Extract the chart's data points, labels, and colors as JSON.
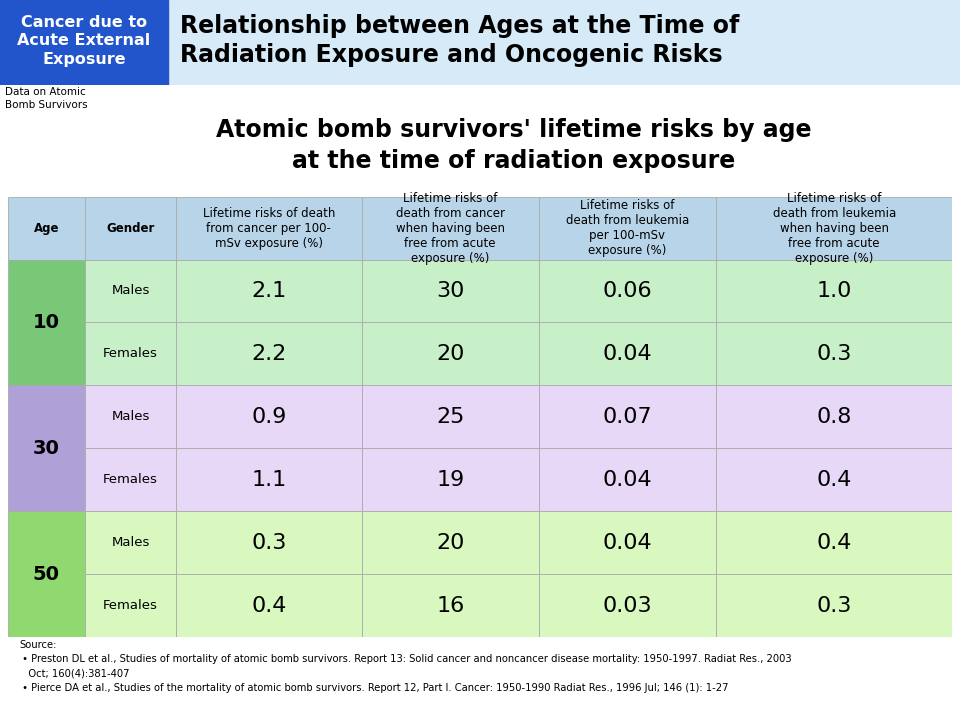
{
  "main_title": "Relationship between Ages at the Time of\nRadiation Exposure and Oncogenic Risks",
  "banner_label": "Cancer due to\nAcute External\nExposure",
  "banner_bg": "#2255cc",
  "banner_text_color": "#ffffff",
  "top_banner_bg": "#d6eaf8",
  "subtitle": "Atomic bomb survivors' lifetime risks by age\nat the time of radiation exposure",
  "subtitle_color": "#000000",
  "data_label": "Data on Atomic\nBomb Survivors",
  "col_headers": [
    "Age",
    "Gender",
    "Lifetime risks of death\nfrom cancer per 100-\nmSv exposure (%)",
    "Lifetime risks of\ndeath from cancer\nwhen having been\nfree from acute\nexposure (%)",
    "Lifetime risks of\ndeath from leukemia\nper 100-mSv\nexposure (%)",
    "Lifetime risks of\ndeath from leukemia\nwhen having been\nfree from acute\nexposure (%)"
  ],
  "col_header_bg": "#b8d4e8",
  "col_header_text": "#000000",
  "rows": [
    {
      "age": "10",
      "gender": "Males",
      "v1": "2.1",
      "v2": "30",
      "v3": "0.06",
      "v4": "1.0"
    },
    {
      "age": "10",
      "gender": "Females",
      "v1": "2.2",
      "v2": "20",
      "v3": "0.04",
      "v4": "0.3"
    },
    {
      "age": "30",
      "gender": "Males",
      "v1": "0.9",
      "v2": "25",
      "v3": "0.07",
      "v4": "0.8"
    },
    {
      "age": "30",
      "gender": "Females",
      "v1": "1.1",
      "v2": "19",
      "v3": "0.04",
      "v4": "0.4"
    },
    {
      "age": "50",
      "gender": "Males",
      "v1": "0.3",
      "v2": "20",
      "v3": "0.04",
      "v4": "0.4"
    },
    {
      "age": "50",
      "gender": "Females",
      "v1": "0.4",
      "v2": "16",
      "v3": "0.03",
      "v4": "0.3"
    }
  ],
  "age_groups": [
    {
      "age": "10",
      "r_start": 0,
      "r_end": 2,
      "age_cell_bg": "#78c878",
      "row_bg": "#c8f0c8"
    },
    {
      "age": "30",
      "r_start": 2,
      "r_end": 4,
      "age_cell_bg": "#b0a0d8",
      "row_bg": "#e8d8f8"
    },
    {
      "age": "50",
      "r_start": 4,
      "r_end": 6,
      "age_cell_bg": "#90d870",
      "row_bg": "#d8f8c0"
    }
  ],
  "source_text": "Source:\n • Preston DL et al., Studies of mortality of atomic bomb survivors. Report 13: Solid cancer and noncancer disease mortality: 1950-1997. Radiat Res., 2003\n   Oct; 160(4):381-407\n • Pierce DA et al., Studies of the mortality of atomic bomb survivors. Report 12, Part I. Cancer: 1950-1990 Radiat Res., 1996 Jul; 146 (1): 1-27",
  "fig_bg": "#ffffff"
}
